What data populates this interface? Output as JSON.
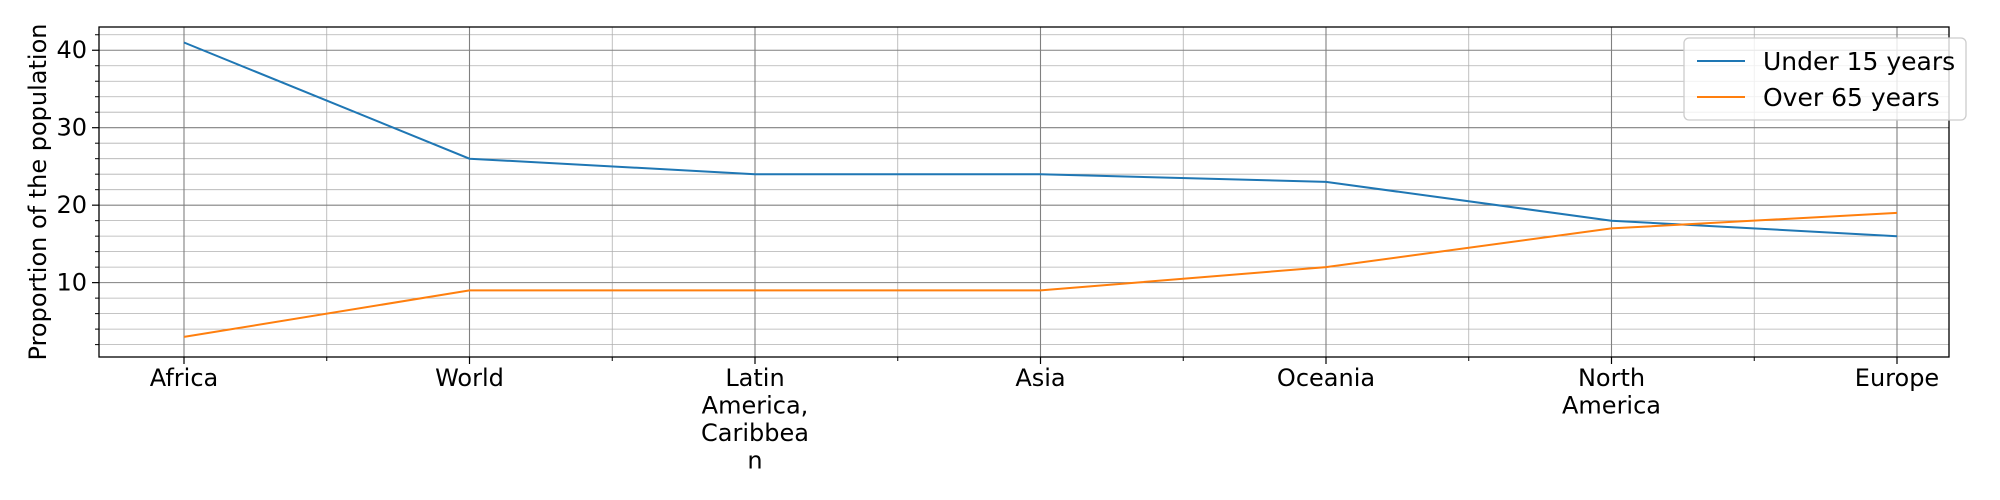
{
  "chart_data": {
    "type": "line",
    "title": "",
    "xlabel": "",
    "ylabel": "Proportion of the population",
    "categories": [
      "Africa",
      "World",
      [
        "Latin",
        "America,",
        "Caribbea",
        "n"
      ],
      "Asia",
      "Oceania",
      [
        "North",
        "America"
      ],
      "Europe"
    ],
    "series": [
      {
        "name": "Under 15 years",
        "color": "#1f77b4",
        "values": [
          41,
          26,
          24,
          24,
          23,
          18,
          16
        ]
      },
      {
        "name": "Over 65 years",
        "color": "#ff7f0e",
        "values": [
          3,
          9,
          9,
          9,
          12,
          17,
          19
        ]
      }
    ],
    "ylim": [
      0.4,
      43
    ],
    "yticks": [
      10,
      20,
      30,
      40
    ],
    "grid": true,
    "minor_grid": true,
    "legend_position": "top-right"
  }
}
